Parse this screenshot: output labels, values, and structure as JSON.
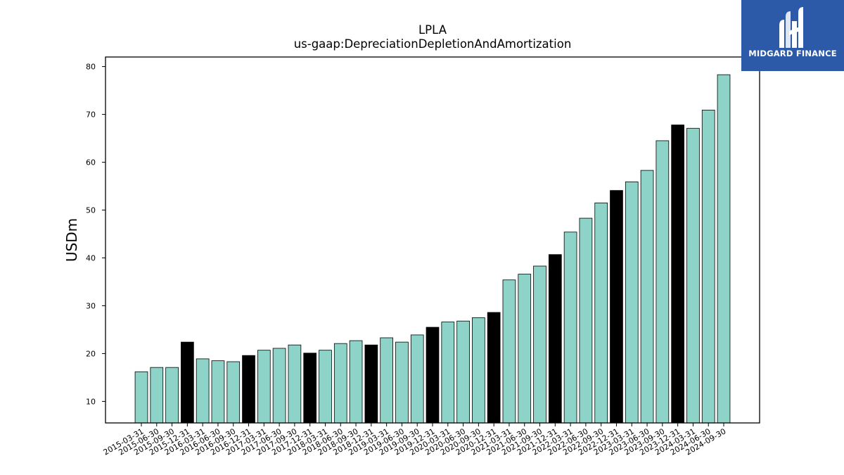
{
  "brand": {
    "name": "MIDGARD FINANCE",
    "color": "#2c5aa9"
  },
  "chart_data": {
    "type": "bar",
    "title": "LPLA",
    "subtitle": "us-gaap:DepreciationDepletionAndAmortization",
    "xlabel": "",
    "ylabel": "USDm",
    "ylim": [
      5.5,
      82
    ],
    "yticks": [
      10,
      20,
      30,
      40,
      50,
      60,
      70,
      80
    ],
    "grid": false,
    "legend": "none",
    "colors": {
      "quarter": "#8dd3c7",
      "year_end": "#000000",
      "edge": "#000000"
    },
    "categories": [
      "2015-03-31",
      "2015-06-30",
      "2015-09-30",
      "2015-12-31",
      "2016-03-31",
      "2016-06-30",
      "2016-09-30",
      "2016-12-31",
      "2017-03-31",
      "2017-06-30",
      "2017-09-30",
      "2017-12-31",
      "2018-03-31",
      "2018-06-30",
      "2018-09-30",
      "2018-12-31",
      "2019-03-31",
      "2019-06-30",
      "2019-09-30",
      "2019-12-31",
      "2020-03-31",
      "2020-06-30",
      "2020-09-30",
      "2020-12-31",
      "2021-03-31",
      "2021-06-30",
      "2021-09-30",
      "2021-12-31",
      "2022-03-31",
      "2022-06-30",
      "2022-09-30",
      "2022-12-31",
      "2023-03-31",
      "2023-06-30",
      "2023-09-30",
      "2023-12-31",
      "2024-03-31",
      "2024-06-30",
      "2024-09-30"
    ],
    "values": [
      16.2,
      17.1,
      17.1,
      22.4,
      18.9,
      18.5,
      18.3,
      19.6,
      20.7,
      21.1,
      21.8,
      20.1,
      20.7,
      22.1,
      22.7,
      21.8,
      23.3,
      22.4,
      23.9,
      25.5,
      26.6,
      26.8,
      27.5,
      28.6,
      35.4,
      36.6,
      38.3,
      40.7,
      45.4,
      48.3,
      51.5,
      54.1,
      55.9,
      58.3,
      64.5,
      67.8,
      67.1,
      70.9,
      78.3
    ]
  }
}
